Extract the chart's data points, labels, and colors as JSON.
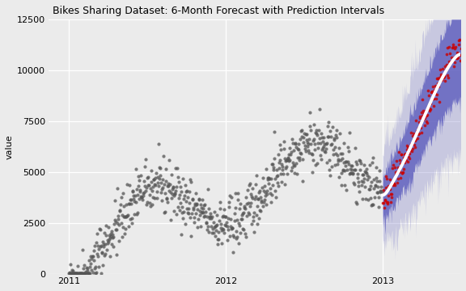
{
  "title": "Bikes Sharing Dataset: 6-Month Forecast with Prediction Intervals",
  "ylabel": "value",
  "ylim": [
    0,
    12500
  ],
  "yticks": [
    0,
    2500,
    5000,
    7500,
    10000,
    12500
  ],
  "background_color": "#ebebeb",
  "scatter_color": "#555555",
  "forecast_scatter_color": "#cc0000",
  "forecast_line_color": "#ffffff",
  "pi_inner_color": "#5555bb",
  "pi_outer_color": "#8888cc",
  "pi_inner_alpha": 0.75,
  "pi_outer_alpha": 0.35,
  "n_historical": 730,
  "n_forecast": 183,
  "seed": 42
}
